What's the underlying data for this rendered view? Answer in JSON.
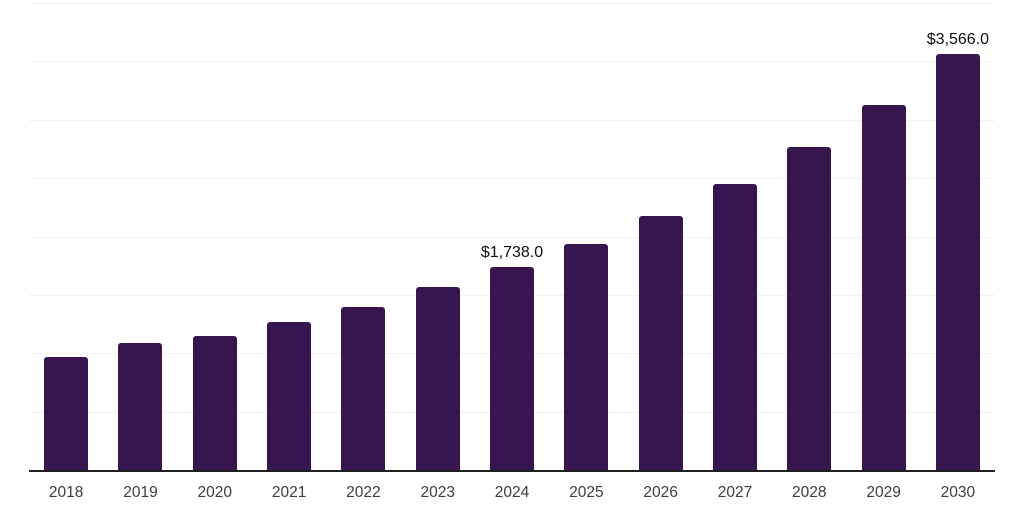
{
  "chart_data": {
    "type": "bar",
    "categories": [
      "2018",
      "2019",
      "2020",
      "2021",
      "2022",
      "2023",
      "2024",
      "2025",
      "2026",
      "2027",
      "2028",
      "2029",
      "2030"
    ],
    "values": [
      970,
      1085,
      1145,
      1270,
      1400,
      1565,
      1738,
      1940,
      2175,
      2450,
      2765,
      3130,
      3566
    ],
    "data_labels": [
      {
        "index": 6,
        "text": "$1,738.0"
      },
      {
        "index": 12,
        "text": "$3,566.0"
      }
    ],
    "ylim": [
      0,
      4000
    ],
    "grid": {
      "show": true,
      "horizontal_lines": 9,
      "interval": 500,
      "color": "#f2f2f2"
    },
    "legend_position": "none",
    "colors": {
      "bar": "#371650",
      "axis_line": "#1f1f1f",
      "tick_label": "#3d3d3d",
      "data_label": "#0f0f0f",
      "background": "#ffffff"
    }
  }
}
